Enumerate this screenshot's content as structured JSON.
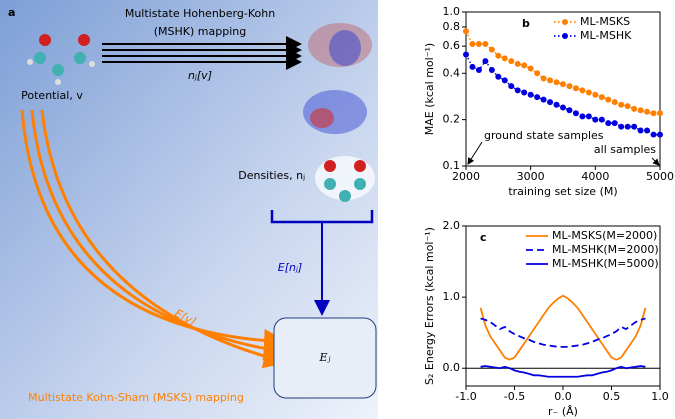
{
  "panel_a": {
    "label": "a",
    "mshk_title": "Multistate Hohenberg-Kohn",
    "mshk_subtitle": "(MSHK) mapping",
    "mshk_arrow_label": "nⱼ[v]",
    "potential": "Potential, v",
    "densities": "Densities, nⱼ",
    "energy_density": "E[nⱼ]",
    "energy_potential": "E[v]",
    "energy_state": "Eⱼ",
    "msks": "Multistate Kohn-Sham (MSKS) mapping"
  },
  "chart_data": [
    {
      "type": "line",
      "panel_label": "b",
      "xlabel": "training set size (M)",
      "ylabel": "MAE (kcal mol⁻¹)",
      "ylog": true,
      "marker": true,
      "dash": "dotted",
      "legend": "upper right",
      "annotations": [
        "ground state samples",
        "all samples"
      ],
      "x": [
        2000,
        2100,
        2200,
        2300,
        2400,
        2500,
        2600,
        2700,
        2800,
        2900,
        3000,
        3100,
        3200,
        3300,
        3400,
        3500,
        3600,
        3700,
        3800,
        3900,
        4000,
        4100,
        4200,
        4300,
        4400,
        4500,
        4600,
        4700,
        4800,
        4900,
        5000
      ],
      "xlim": [
        2000,
        5000
      ],
      "xticks": [
        2000,
        3000,
        4000,
        5000
      ],
      "ylim": [
        0.1,
        1
      ],
      "yticks": [
        0.1,
        0.2,
        0.4,
        0.6,
        0.8,
        {
          "value": 1,
          "label": "1.0"
        }
      ],
      "series": [
        {
          "name": "ML-MSKS",
          "color": "#ff8000",
          "values": [
            0.75,
            0.62,
            0.62,
            0.62,
            0.57,
            0.52,
            0.5,
            0.48,
            0.46,
            0.45,
            0.43,
            0.4,
            0.37,
            0.36,
            0.35,
            0.34,
            0.33,
            0.32,
            0.31,
            0.3,
            0.29,
            0.28,
            0.27,
            0.26,
            0.25,
            0.245,
            0.235,
            0.23,
            0.225,
            0.22,
            0.22
          ]
        },
        {
          "name": "ML-MSHK",
          "color": "#0000e0",
          "values": [
            0.53,
            0.44,
            0.42,
            0.48,
            0.42,
            0.38,
            0.36,
            0.33,
            0.31,
            0.3,
            0.29,
            0.28,
            0.27,
            0.26,
            0.25,
            0.24,
            0.23,
            0.22,
            0.21,
            0.21,
            0.2,
            0.2,
            0.19,
            0.19,
            0.18,
            0.18,
            0.18,
            0.17,
            0.17,
            0.16,
            0.16
          ]
        }
      ]
    },
    {
      "type": "line",
      "panel_label": "c",
      "xlabel": "r₋ (Å)",
      "ylabel": "S₂ Energy Errors (kcal mol⁻¹)",
      "legend": "upper right",
      "zero_line": true,
      "x": [
        -0.85,
        -0.8,
        -0.75,
        -0.7,
        -0.65,
        -0.6,
        -0.55,
        -0.5,
        -0.45,
        -0.4,
        -0.35,
        -0.3,
        -0.25,
        -0.2,
        -0.15,
        -0.1,
        -0.05,
        0,
        0.05,
        0.1,
        0.15,
        0.2,
        0.25,
        0.3,
        0.35,
        0.4,
        0.45,
        0.5,
        0.55,
        0.6,
        0.65,
        0.7,
        0.75,
        0.8,
        0.85
      ],
      "xlim": [
        -1,
        1
      ],
      "xticks": [
        {
          "value": -1,
          "label": "-1.0"
        },
        -0.5,
        {
          "value": 0,
          "label": "0.0"
        },
        0.5,
        {
          "value": 1,
          "label": "1.0"
        }
      ],
      "ylim": [
        -0.25,
        2
      ],
      "yticks": [
        {
          "value": 0,
          "label": "0.0"
        },
        {
          "value": 1,
          "label": "1.0"
        },
        {
          "value": 2,
          "label": "2.0"
        }
      ],
      "series": [
        {
          "name": "ML-MSKS(M=2000)",
          "color": "#ff8000",
          "dash": "solid",
          "values": [
            0.85,
            0.6,
            0.45,
            0.35,
            0.25,
            0.15,
            0.12,
            0.15,
            0.25,
            0.35,
            0.45,
            0.55,
            0.65,
            0.75,
            0.85,
            0.92,
            0.98,
            1.02,
            0.98,
            0.92,
            0.85,
            0.75,
            0.65,
            0.55,
            0.45,
            0.35,
            0.25,
            0.15,
            0.12,
            0.15,
            0.25,
            0.35,
            0.45,
            0.6,
            0.85
          ]
        },
        {
          "name": "ML-MSHK(M=2000)",
          "color": "#0000e0",
          "dash": "dashed",
          "values": [
            0.7,
            0.68,
            0.65,
            0.6,
            0.55,
            0.58,
            0.52,
            0.48,
            0.45,
            0.42,
            0.4,
            0.37,
            0.35,
            0.33,
            0.32,
            0.31,
            0.3,
            0.3,
            0.3,
            0.31,
            0.32,
            0.33,
            0.35,
            0.37,
            0.4,
            0.42,
            0.45,
            0.48,
            0.52,
            0.58,
            0.55,
            0.6,
            0.65,
            0.68,
            0.7
          ]
        },
        {
          "name": "ML-MSHK(M=5000)",
          "color": "#0000e0",
          "dash": "solid",
          "values": [
            0.02,
            0.03,
            0.02,
            0.01,
            0,
            0.02,
            0,
            -0.03,
            -0.05,
            -0.06,
            -0.08,
            -0.1,
            -0.1,
            -0.11,
            -0.12,
            -0.12,
            -0.12,
            -0.12,
            -0.12,
            -0.12,
            -0.12,
            -0.11,
            -0.1,
            -0.1,
            -0.08,
            -0.06,
            -0.05,
            -0.03,
            0,
            0.02,
            0,
            0.01,
            0.02,
            0.03,
            0.02
          ]
        }
      ]
    }
  ]
}
